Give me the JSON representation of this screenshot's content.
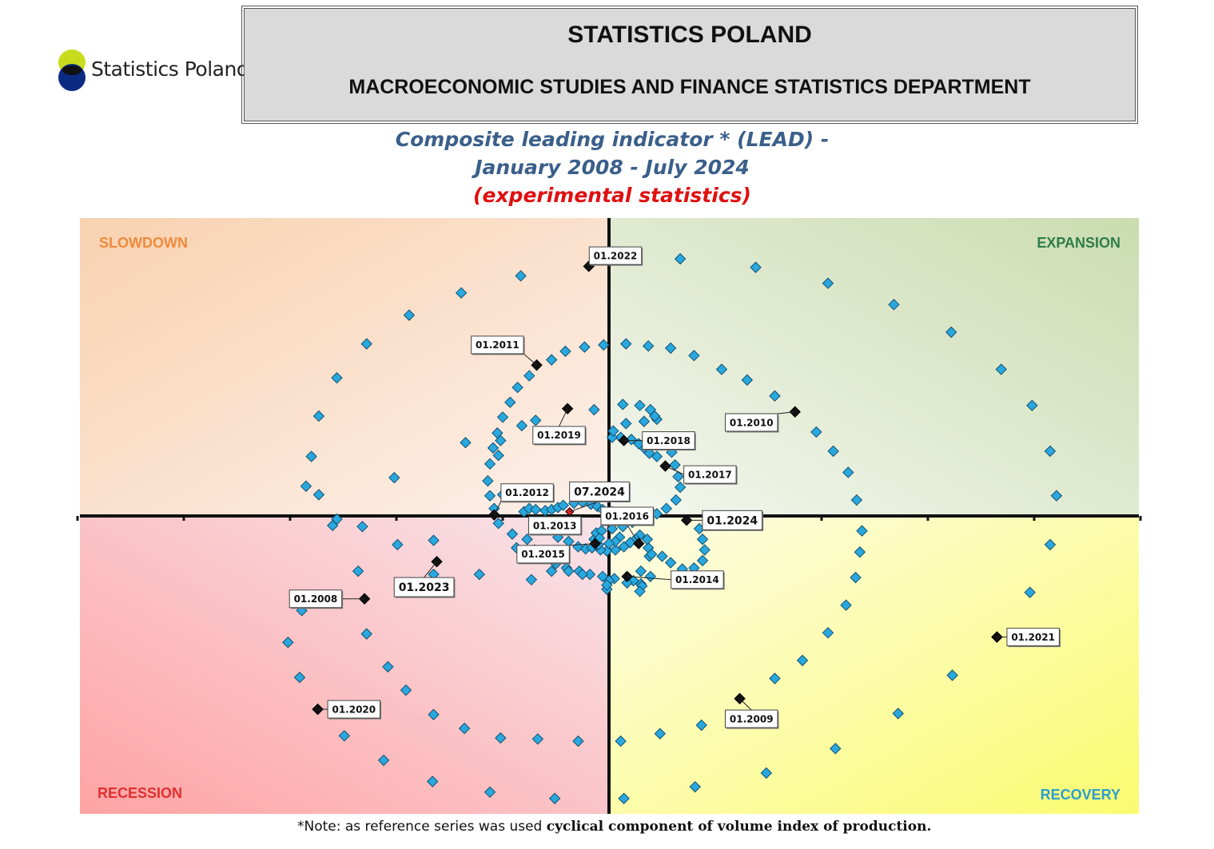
{
  "logo": {
    "text": "Statistics Poland"
  },
  "header": {
    "title": "STATISTICS POLAND",
    "department": "MACROECONOMIC STUDIES AND FINANCE STATISTICS DEPARTMENT"
  },
  "chart_title": {
    "line1": "Composite leading indicator * (LEAD) -",
    "line2": "January 2008 - July 2024",
    "line3": "(experimental statistics)"
  },
  "note": {
    "prefix": "*Note: as reference series was used ",
    "bold": "cyclical component of volume index of production."
  },
  "chart_data": {
    "type": "scatter",
    "x_meaning": "horizontal position (left = below trend / falling, right = rising)",
    "xlim": [
      -5,
      5
    ],
    "ylim": [
      -2.8,
      2.8
    ],
    "quadrants": {
      "top_left": "SLOWDOWN",
      "top_right": "EXPANSION",
      "bottom_left": "RECESSION",
      "bottom_right": "RECOVERY"
    },
    "colors": {
      "point": "#29a8df",
      "point_stroke": "#13506e",
      "labelled_point": "#111111",
      "current_point": "#e02020",
      "slowdown_text": "#f08a3c",
      "expansion_text": "#2e7d4a",
      "recession_text": "#e03030",
      "recovery_text": "#29a0d0"
    },
    "labelled_points": [
      {
        "label": "01.2008",
        "x": -2.3,
        "y": -0.78,
        "lx": -2.76,
        "ly": -0.78
      },
      {
        "label": "01.2009",
        "x": 1.23,
        "y": -1.72,
        "lx": 1.34,
        "ly": -1.91
      },
      {
        "label": "01.2010",
        "x": 1.75,
        "y": 0.98,
        "lx": 1.34,
        "ly": 0.88
      },
      {
        "label": "01.2011",
        "x": -0.68,
        "y": 1.42,
        "lx": -1.05,
        "ly": 1.61
      },
      {
        "label": "01.2012",
        "x": -1.08,
        "y": 0.01,
        "lx": -0.77,
        "ly": 0.22
      },
      {
        "label": "01.2013",
        "x": -0.63,
        "y": -0.12,
        "lx": -0.51,
        "ly": -0.09
      },
      {
        "label": "01.2014",
        "x": 0.17,
        "y": -0.57,
        "lx": 0.83,
        "ly": -0.6
      },
      {
        "label": "01.2015",
        "x": -0.13,
        "y": -0.26,
        "lx": -0.62,
        "ly": -0.36
      },
      {
        "label": "01.2016",
        "x": 0.28,
        "y": -0.26,
        "lx": 0.17,
        "ly": 0.0
      },
      {
        "label": "01.2017",
        "x": 0.53,
        "y": 0.47,
        "lx": 0.95,
        "ly": 0.39
      },
      {
        "label": "01.2018",
        "x": 0.14,
        "y": 0.71,
        "lx": 0.56,
        "ly": 0.71
      },
      {
        "label": "01.2019",
        "x": -0.39,
        "y": 1.01,
        "lx": -0.47,
        "ly": 0.76
      },
      {
        "label": "01.2020",
        "x": -2.74,
        "y": -1.82,
        "lx": -2.4,
        "ly": -1.82
      },
      {
        "label": "01.2021",
        "x": 3.65,
        "y": -1.14,
        "lx": 3.99,
        "ly": -1.14
      },
      {
        "label": "01.2022",
        "x": -0.19,
        "y": 2.35,
        "lx": 0.06,
        "ly": 2.45
      },
      {
        "label": "01.2023",
        "x": -1.62,
        "y": -0.43,
        "lx": -1.74,
        "ly": -0.67
      },
      {
        "label": "01.2024",
        "x": 0.73,
        "y": -0.04,
        "lx": 1.16,
        "ly": -0.04
      },
      {
        "label": "07.2024",
        "x": -0.37,
        "y": 0.04,
        "lx": -0.09,
        "ly": 0.23,
        "current": true
      }
    ],
    "points": [
      [
        -2.89,
        -0.89
      ],
      [
        -3.02,
        -1.19
      ],
      [
        -2.91,
        -1.52
      ],
      [
        -2.74,
        -1.82
      ],
      [
        -2.49,
        -2.07
      ],
      [
        -2.12,
        -2.3
      ],
      [
        -1.66,
        -2.5
      ],
      [
        -1.12,
        -2.6
      ],
      [
        -0.51,
        -2.66
      ],
      [
        0.14,
        -2.66
      ],
      [
        0.81,
        -2.55
      ],
      [
        1.48,
        -2.42
      ],
      [
        2.13,
        -2.19
      ],
      [
        2.72,
        -1.86
      ],
      [
        3.23,
        -1.5
      ],
      [
        3.65,
        -1.14
      ],
      [
        3.96,
        -0.72
      ],
      [
        4.15,
        -0.27
      ],
      [
        4.21,
        0.19
      ],
      [
        4.15,
        0.61
      ],
      [
        3.98,
        1.04
      ],
      [
        3.69,
        1.38
      ],
      [
        3.22,
        1.73
      ],
      [
        2.68,
        1.99
      ],
      [
        2.06,
        2.19
      ],
      [
        1.38,
        2.34
      ],
      [
        0.67,
        2.42
      ],
      [
        -0.83,
        2.26
      ],
      [
        -1.39,
        2.1
      ],
      [
        -1.88,
        1.89
      ],
      [
        -2.28,
        1.62
      ],
      [
        -2.56,
        1.3
      ],
      [
        -2.73,
        0.94
      ],
      [
        -2.8,
        0.56
      ],
      [
        -2.73,
        0.2
      ],
      [
        -2.56,
        -0.03
      ],
      [
        -2.32,
        -0.1
      ],
      [
        -1.99,
        -0.27
      ],
      [
        -0.73,
        -0.6
      ],
      [
        -1.22,
        -0.55
      ],
      [
        -1.65,
        -0.55
      ],
      [
        -2.36,
        -0.52
      ],
      [
        -2.28,
        -1.11
      ],
      [
        -2.08,
        -1.42
      ],
      [
        -1.91,
        -1.64
      ],
      [
        -1.65,
        -1.87
      ],
      [
        -1.36,
        -2.0
      ],
      [
        -1.02,
        -2.09
      ],
      [
        -0.67,
        -2.1
      ],
      [
        -0.29,
        -2.12
      ],
      [
        0.11,
        -2.12
      ],
      [
        0.48,
        -2.05
      ],
      [
        0.87,
        -1.97
      ],
      [
        1.56,
        -1.53
      ],
      [
        1.82,
        -1.36
      ],
      [
        2.06,
        -1.1
      ],
      [
        2.23,
        -0.84
      ],
      [
        2.32,
        -0.58
      ],
      [
        2.36,
        -0.34
      ],
      [
        2.38,
        -0.14
      ],
      [
        2.33,
        0.15
      ],
      [
        2.25,
        0.41
      ],
      [
        2.11,
        0.61
      ],
      [
        1.95,
        0.79
      ],
      [
        1.56,
        1.13
      ],
      [
        1.3,
        1.28
      ],
      [
        1.06,
        1.38
      ],
      [
        0.8,
        1.51
      ],
      [
        0.58,
        1.58
      ],
      [
        0.37,
        1.6
      ],
      [
        0.16,
        1.62
      ],
      [
        -0.05,
        1.61
      ],
      [
        -0.23,
        1.59
      ],
      [
        -0.41,
        1.55
      ],
      [
        -0.54,
        1.47
      ],
      [
        -0.75,
        1.32
      ],
      [
        -0.86,
        1.21
      ],
      [
        -0.93,
        1.07
      ],
      [
        -1.0,
        0.93
      ],
      [
        -1.05,
        0.78
      ],
      [
        -1.09,
        0.64
      ],
      [
        -1.12,
        0.49
      ],
      [
        -1.14,
        0.33
      ],
      [
        -1.12,
        0.19
      ],
      [
        -1.08,
        0.07
      ],
      [
        -1.04,
        -0.07
      ],
      [
        -0.91,
        -0.17
      ],
      [
        -0.77,
        -0.22
      ],
      [
        -0.7,
        -0.32
      ],
      [
        -0.62,
        -0.39
      ],
      [
        -0.5,
        -0.45
      ],
      [
        -0.4,
        -0.49
      ],
      [
        -0.28,
        -0.52
      ],
      [
        -0.18,
        -0.55
      ],
      [
        -0.06,
        -0.57
      ],
      [
        0.05,
        -0.59
      ],
      [
        -1.65,
        -0.23
      ],
      [
        -0.87,
        -0.3
      ],
      [
        -0.68,
        -0.37
      ],
      [
        -0.54,
        -0.52
      ],
      [
        -0.02,
        -0.69
      ],
      [
        0.3,
        -0.64
      ],
      [
        0.39,
        -0.57
      ],
      [
        0.38,
        -0.38
      ],
      [
        0.37,
        -0.3
      ],
      [
        0.36,
        -0.22
      ],
      [
        0.29,
        -0.18
      ],
      [
        0.25,
        -0.22
      ],
      [
        0.2,
        -0.25
      ],
      [
        0.14,
        -0.29
      ],
      [
        0.06,
        -0.32
      ],
      [
        -0.02,
        -0.33
      ],
      [
        -0.08,
        -0.32
      ],
      [
        -0.12,
        -0.28
      ],
      [
        -0.14,
        -0.22
      ],
      [
        -0.12,
        -0.16
      ],
      [
        -0.07,
        -0.14
      ],
      [
        0.03,
        -0.12
      ],
      [
        0.13,
        -0.1
      ],
      [
        0.22,
        -0.06
      ],
      [
        0.33,
        -0.02
      ],
      [
        0.45,
        0.02
      ],
      [
        0.54,
        0.07
      ],
      [
        0.63,
        0.15
      ],
      [
        0.67,
        0.27
      ],
      [
        0.65,
        0.37
      ],
      [
        0.62,
        0.48
      ],
      [
        0.59,
        0.6
      ],
      [
        0.45,
        0.56
      ],
      [
        0.38,
        0.59
      ],
      [
        0.33,
        0.64
      ],
      [
        0.28,
        0.68
      ],
      [
        0.21,
        0.72
      ],
      [
        0.11,
        0.74
      ],
      [
        0.03,
        0.74
      ],
      [
        0.04,
        0.8
      ],
      [
        0.16,
        0.87
      ],
      [
        0.33,
        0.89
      ],
      [
        0.45,
        0.91
      ],
      [
        0.43,
        0.94
      ],
      [
        0.39,
        1.0
      ],
      [
        0.29,
        1.04
      ],
      [
        0.13,
        1.05
      ],
      [
        -0.14,
        1.0
      ],
      [
        -0.69,
        0.9
      ],
      [
        -1.35,
        0.69
      ],
      [
        -0.82,
        0.85
      ],
      [
        -1.04,
        0.57
      ],
      [
        -2.02,
        0.36
      ],
      [
        -2.85,
        0.28
      ],
      [
        -2.6,
        -0.09
      ],
      [
        -1.02,
        0.71
      ],
      [
        -1.0,
        0.2
      ],
      [
        0.85,
        -0.12
      ],
      [
        0.88,
        -0.22
      ],
      [
        0.9,
        -0.32
      ],
      [
        0.88,
        -0.42
      ],
      [
        0.8,
        -0.49
      ],
      [
        0.69,
        -0.5
      ],
      [
        0.58,
        -0.44
      ],
      [
        0.5,
        -0.38
      ],
      [
        0.4,
        -0.36
      ],
      [
        0.3,
        -0.52
      ],
      [
        0.23,
        -0.61
      ],
      [
        0.17,
        -0.63
      ],
      [
        0.31,
        -0.66
      ],
      [
        0.29,
        -0.71
      ],
      [
        -0.38,
        -0.52
      ],
      [
        -0.25,
        -0.55
      ],
      [
        0.0,
        -0.61
      ],
      [
        -0.02,
        -0.65
      ],
      [
        -0.51,
        -0.41
      ],
      [
        -0.6,
        -0.36
      ],
      [
        -0.48,
        -0.2
      ],
      [
        -0.38,
        -0.24
      ],
      [
        -0.29,
        -0.29
      ],
      [
        -0.22,
        -0.31
      ],
      [
        -0.16,
        -0.3
      ],
      [
        -0.1,
        -0.27
      ],
      [
        -0.09,
        -0.21
      ],
      [
        0.1,
        -0.2
      ],
      [
        0.06,
        -0.24
      ],
      [
        0.0,
        -0.26
      ],
      [
        -0.8,
        0.04
      ],
      [
        -0.75,
        0.07
      ],
      [
        -0.69,
        0.06
      ],
      [
        -0.6,
        0.05
      ],
      [
        -0.54,
        0.06
      ],
      [
        -0.48,
        0.08
      ],
      [
        -0.43,
        0.1
      ],
      [
        -0.33,
        0.12
      ],
      [
        -0.25,
        0.13
      ],
      [
        -0.17,
        0.11
      ],
      [
        -0.11,
        0.09
      ],
      [
        -0.06,
        0.06
      ],
      [
        0.03,
        0.04
      ],
      [
        0.12,
        0.02
      ]
    ]
  }
}
